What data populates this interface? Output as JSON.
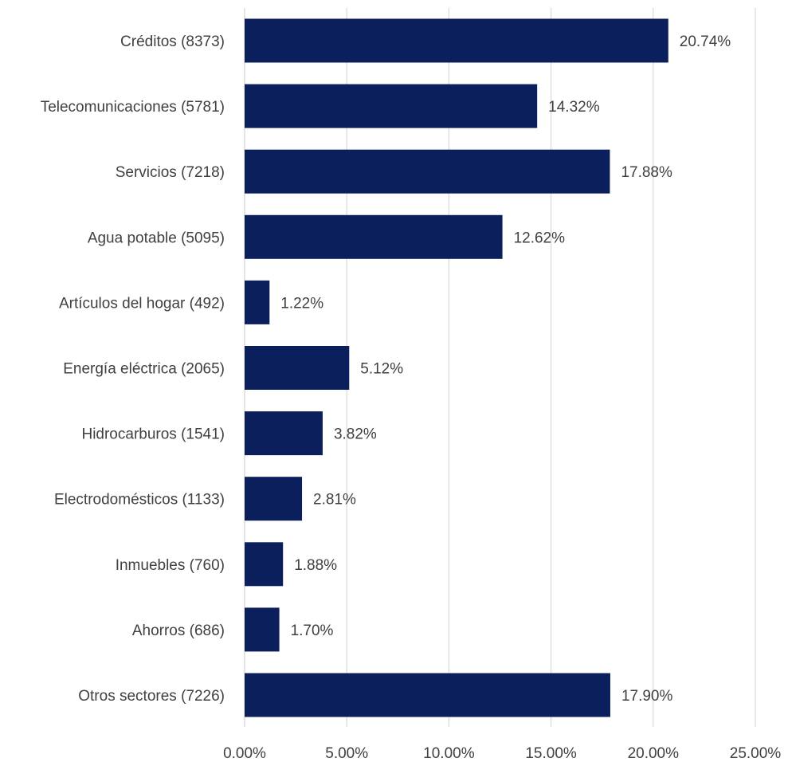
{
  "chart_data": {
    "type": "bar",
    "orientation": "horizontal",
    "categories": [
      "Créditos (8373)",
      "Telecomunicaciones (5781)",
      "Servicios (7218)",
      "Agua potable (5095)",
      "Artículos del hogar (492)",
      "Energía eléctrica (2065)",
      "Hidrocarburos (1541)",
      "Electrodomésticos (1133)",
      "Inmuebles (760)",
      "Ahorros (686)",
      "Otros sectores (7226)"
    ],
    "values": [
      20.74,
      14.32,
      17.88,
      12.62,
      1.22,
      5.12,
      3.82,
      2.81,
      1.88,
      1.7,
      17.9
    ],
    "data_labels": [
      "20.74%",
      "14.32%",
      "17.88%",
      "12.62%",
      "1.22%",
      "5.12%",
      "3.82%",
      "2.81%",
      "1.88%",
      "1.70%",
      "17.90%"
    ],
    "x_ticks": [
      0,
      5,
      10,
      15,
      20,
      25
    ],
    "x_tick_labels": [
      "0.00%",
      "5.00%",
      "10.00%",
      "15.00%",
      "20.00%",
      "25.00%"
    ],
    "xlim": [
      0,
      25
    ],
    "title": "",
    "xlabel": "",
    "ylabel": "",
    "grid": "vertical",
    "legend": "none",
    "colors": {
      "bar": "#0a1f5c",
      "grid": "#d9d9d9",
      "text": "#404040"
    }
  }
}
